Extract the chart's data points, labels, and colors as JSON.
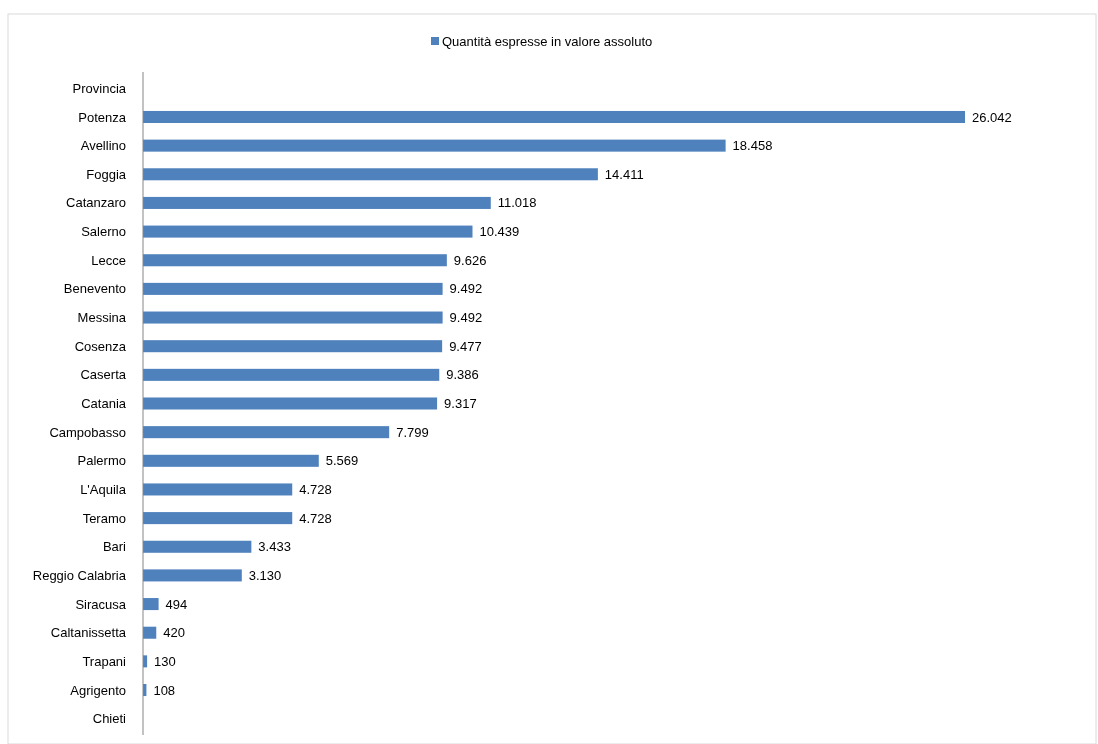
{
  "chart_data": {
    "type": "bar",
    "orientation": "horizontal",
    "legend": "top",
    "categories": [
      "Provincia",
      "Potenza",
      "Avellino",
      "Foggia",
      "Catanzaro",
      "Salerno",
      "Lecce",
      "Benevento",
      "Messina",
      "Cosenza",
      "Caserta",
      "Catania",
      "Campobasso",
      "Palermo",
      "L'Aquila",
      "Teramo",
      "Bari",
      "Reggio Calabria",
      "Siracusa",
      "Caltanissetta",
      "Trapani",
      "Agrigento",
      "Chieti"
    ],
    "series": [
      {
        "name": "Quantità espresse in valore assoluto",
        "color": "#4f81bd",
        "values": [
          null,
          26042,
          18458,
          14411,
          11018,
          10439,
          9626,
          9492,
          9492,
          9477,
          9386,
          9317,
          7799,
          5569,
          4728,
          4728,
          3433,
          3130,
          494,
          420,
          130,
          108,
          null
        ],
        "value_labels": [
          null,
          "26.042",
          "18.458",
          "14.411",
          "11.018",
          "10.439",
          "9.626",
          "9.492",
          "9.492",
          "9.477",
          "9.386",
          "9.317",
          "7.799",
          "5.569",
          "4.728",
          "4.728",
          "3.433",
          "3.130",
          "494",
          "420",
          "130",
          "108",
          null
        ]
      }
    ]
  }
}
